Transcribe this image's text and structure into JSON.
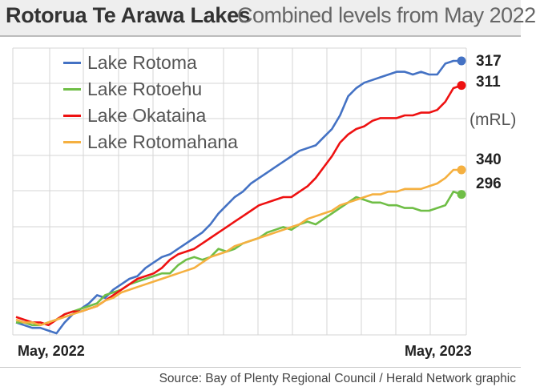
{
  "header": {
    "title": "Rotorua Te Arawa Lakes",
    "subtitle": "Combined levels from May 2022"
  },
  "source": "Source: Bay of Plenty Regional Council / Herald Network graphic",
  "chart_data": {
    "type": "line",
    "title": "Rotorua Te Arawa Lakes",
    "subtitle": "Combined levels from May 2022",
    "unit_label": "(mRL)",
    "x_tick_labels": [
      "May, 2022",
      "May, 2023"
    ],
    "x_range_weeks": [
      0,
      55
    ],
    "y_range": [
      0,
      100
    ],
    "y_scale_note": "each series is plotted on its own relative scale; no y tick labels are printed",
    "grid": true,
    "legend_position": "top-left",
    "series": [
      {
        "name": "Lake Rotoma",
        "color": "#4472c4",
        "end_label": "317",
        "points": [
          [
            0,
            4
          ],
          [
            1,
            3
          ],
          [
            2,
            2
          ],
          [
            3,
            2
          ],
          [
            4,
            1
          ],
          [
            5,
            0
          ],
          [
            6,
            4
          ],
          [
            7,
            7
          ],
          [
            8,
            9
          ],
          [
            9,
            11
          ],
          [
            10,
            14
          ],
          [
            11,
            13
          ],
          [
            12,
            16
          ],
          [
            13,
            18
          ],
          [
            14,
            20
          ],
          [
            15,
            21
          ],
          [
            16,
            24
          ],
          [
            17,
            26
          ],
          [
            18,
            28
          ],
          [
            19,
            29
          ],
          [
            20,
            31
          ],
          [
            21,
            33
          ],
          [
            22,
            35
          ],
          [
            23,
            37
          ],
          [
            24,
            40
          ],
          [
            25,
            44
          ],
          [
            26,
            47
          ],
          [
            27,
            50
          ],
          [
            28,
            52
          ],
          [
            29,
            55
          ],
          [
            30,
            57
          ],
          [
            31,
            59
          ],
          [
            32,
            61
          ],
          [
            33,
            63
          ],
          [
            34,
            65
          ],
          [
            35,
            67
          ],
          [
            36,
            68
          ],
          [
            37,
            69
          ],
          [
            38,
            72
          ],
          [
            39,
            75
          ],
          [
            40,
            80
          ],
          [
            41,
            87
          ],
          [
            42,
            90
          ],
          [
            43,
            92
          ],
          [
            44,
            93
          ],
          [
            45,
            94
          ],
          [
            46,
            95
          ],
          [
            47,
            96
          ],
          [
            48,
            96
          ],
          [
            49,
            95
          ],
          [
            50,
            96
          ],
          [
            51,
            95
          ],
          [
            52,
            95
          ],
          [
            53,
            99
          ],
          [
            54,
            100
          ],
          [
            55,
            100
          ]
        ]
      },
      {
        "name": "Lake Rotoehu",
        "color": "#6fbe46",
        "end_label": "296",
        "points": [
          [
            0,
            4
          ],
          [
            1,
            4
          ],
          [
            2,
            3
          ],
          [
            3,
            3
          ],
          [
            4,
            4
          ],
          [
            5,
            5
          ],
          [
            6,
            7
          ],
          [
            7,
            8
          ],
          [
            8,
            9
          ],
          [
            9,
            10
          ],
          [
            10,
            11
          ],
          [
            11,
            14
          ],
          [
            12,
            15
          ],
          [
            13,
            16
          ],
          [
            14,
            18
          ],
          [
            15,
            19
          ],
          [
            16,
            20
          ],
          [
            17,
            21
          ],
          [
            18,
            22
          ],
          [
            19,
            22
          ],
          [
            20,
            25
          ],
          [
            21,
            27
          ],
          [
            22,
            28
          ],
          [
            23,
            27
          ],
          [
            24,
            28
          ],
          [
            25,
            31
          ],
          [
            26,
            30
          ],
          [
            27,
            31
          ],
          [
            28,
            33
          ],
          [
            29,
            34
          ],
          [
            30,
            35
          ],
          [
            31,
            37
          ],
          [
            32,
            38
          ],
          [
            33,
            39
          ],
          [
            34,
            38
          ],
          [
            35,
            40
          ],
          [
            36,
            41
          ],
          [
            37,
            40
          ],
          [
            38,
            42
          ],
          [
            39,
            44
          ],
          [
            40,
            46
          ],
          [
            41,
            48
          ],
          [
            42,
            50
          ],
          [
            43,
            49
          ],
          [
            44,
            48
          ],
          [
            45,
            48
          ],
          [
            46,
            47
          ],
          [
            47,
            47
          ],
          [
            48,
            46
          ],
          [
            49,
            46
          ],
          [
            50,
            45
          ],
          [
            51,
            45
          ],
          [
            52,
            46
          ],
          [
            53,
            47
          ],
          [
            54,
            52
          ],
          [
            55,
            51
          ]
        ]
      },
      {
        "name": "Lake Okataina",
        "color": "#ee1111",
        "end_label": "311",
        "points": [
          [
            0,
            6
          ],
          [
            1,
            5
          ],
          [
            2,
            4
          ],
          [
            3,
            4
          ],
          [
            4,
            3
          ],
          [
            5,
            5
          ],
          [
            6,
            7
          ],
          [
            7,
            8
          ],
          [
            8,
            8
          ],
          [
            9,
            9
          ],
          [
            10,
            10
          ],
          [
            11,
            12
          ],
          [
            12,
            14
          ],
          [
            13,
            16
          ],
          [
            14,
            18
          ],
          [
            15,
            20
          ],
          [
            16,
            21
          ],
          [
            17,
            22
          ],
          [
            18,
            24
          ],
          [
            19,
            27
          ],
          [
            20,
            29
          ],
          [
            21,
            30
          ],
          [
            22,
            31
          ],
          [
            23,
            33
          ],
          [
            24,
            35
          ],
          [
            25,
            37
          ],
          [
            26,
            39
          ],
          [
            27,
            41
          ],
          [
            28,
            43
          ],
          [
            29,
            45
          ],
          [
            30,
            47
          ],
          [
            31,
            48
          ],
          [
            32,
            49
          ],
          [
            33,
            50
          ],
          [
            34,
            50
          ],
          [
            35,
            52
          ],
          [
            36,
            54
          ],
          [
            37,
            57
          ],
          [
            38,
            61
          ],
          [
            39,
            65
          ],
          [
            40,
            70
          ],
          [
            41,
            73
          ],
          [
            42,
            75
          ],
          [
            43,
            76
          ],
          [
            44,
            78
          ],
          [
            45,
            79
          ],
          [
            46,
            79
          ],
          [
            47,
            79
          ],
          [
            48,
            80
          ],
          [
            49,
            80
          ],
          [
            50,
            81
          ],
          [
            51,
            81
          ],
          [
            52,
            82
          ],
          [
            53,
            85
          ],
          [
            54,
            90
          ],
          [
            55,
            91
          ]
        ]
      },
      {
        "name": "Lake Rotomahana",
        "color": "#f5b040",
        "end_label": "340",
        "points": [
          [
            0,
            5
          ],
          [
            1,
            4
          ],
          [
            2,
            4
          ],
          [
            3,
            3
          ],
          [
            4,
            4
          ],
          [
            5,
            5
          ],
          [
            6,
            6
          ],
          [
            7,
            7
          ],
          [
            8,
            8
          ],
          [
            9,
            9
          ],
          [
            10,
            10
          ],
          [
            11,
            12
          ],
          [
            12,
            13
          ],
          [
            13,
            15
          ],
          [
            14,
            16
          ],
          [
            15,
            17
          ],
          [
            16,
            18
          ],
          [
            17,
            19
          ],
          [
            18,
            20
          ],
          [
            19,
            21
          ],
          [
            20,
            22
          ],
          [
            21,
            23
          ],
          [
            22,
            24
          ],
          [
            23,
            26
          ],
          [
            24,
            28
          ],
          [
            25,
            29
          ],
          [
            26,
            30
          ],
          [
            27,
            32
          ],
          [
            28,
            33
          ],
          [
            29,
            34
          ],
          [
            30,
            35
          ],
          [
            31,
            36
          ],
          [
            32,
            37
          ],
          [
            33,
            38
          ],
          [
            34,
            39
          ],
          [
            35,
            40
          ],
          [
            36,
            42
          ],
          [
            37,
            43
          ],
          [
            38,
            44
          ],
          [
            39,
            45
          ],
          [
            40,
            47
          ],
          [
            41,
            48
          ],
          [
            42,
            49
          ],
          [
            43,
            50
          ],
          [
            44,
            51
          ],
          [
            45,
            51
          ],
          [
            46,
            52
          ],
          [
            47,
            52
          ],
          [
            48,
            53
          ],
          [
            49,
            53
          ],
          [
            50,
            53
          ],
          [
            51,
            54
          ],
          [
            52,
            55
          ],
          [
            53,
            57
          ],
          [
            54,
            60
          ],
          [
            55,
            60
          ]
        ]
      }
    ]
  }
}
